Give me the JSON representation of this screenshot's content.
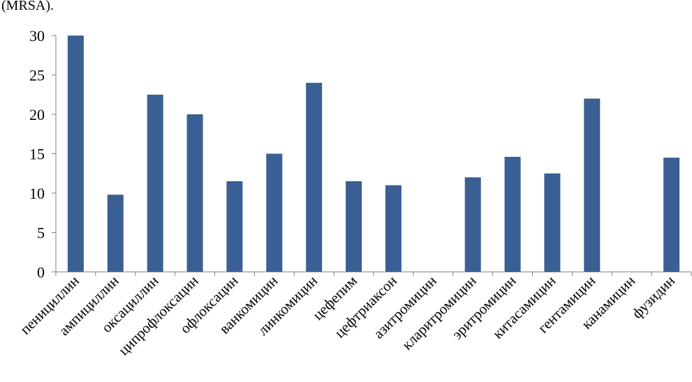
{
  "caption": "(MRSA).",
  "chart_data": {
    "type": "bar",
    "categories": [
      "пенициллин",
      "ампициллин",
      "оксациллин",
      "ципрофлоксацин",
      "офлоксацин",
      "ванкомицин",
      "линкомицин",
      "цефепим",
      "цефтриаксон",
      "азитромицин",
      "кларитромицин",
      "эритромицин",
      "китасамицин",
      "гентамицин",
      "канамицин",
      "фузидин"
    ],
    "values": [
      30,
      9.8,
      22.5,
      20,
      11.5,
      15,
      24,
      11.5,
      11,
      0,
      12,
      14.6,
      12.5,
      22,
      0,
      14.5
    ],
    "ylim": [
      0,
      30
    ],
    "yticks": [
      0,
      5,
      10,
      15,
      20,
      25,
      30
    ],
    "grid": false,
    "legend": "none",
    "bar_color": "#3a5f94"
  }
}
